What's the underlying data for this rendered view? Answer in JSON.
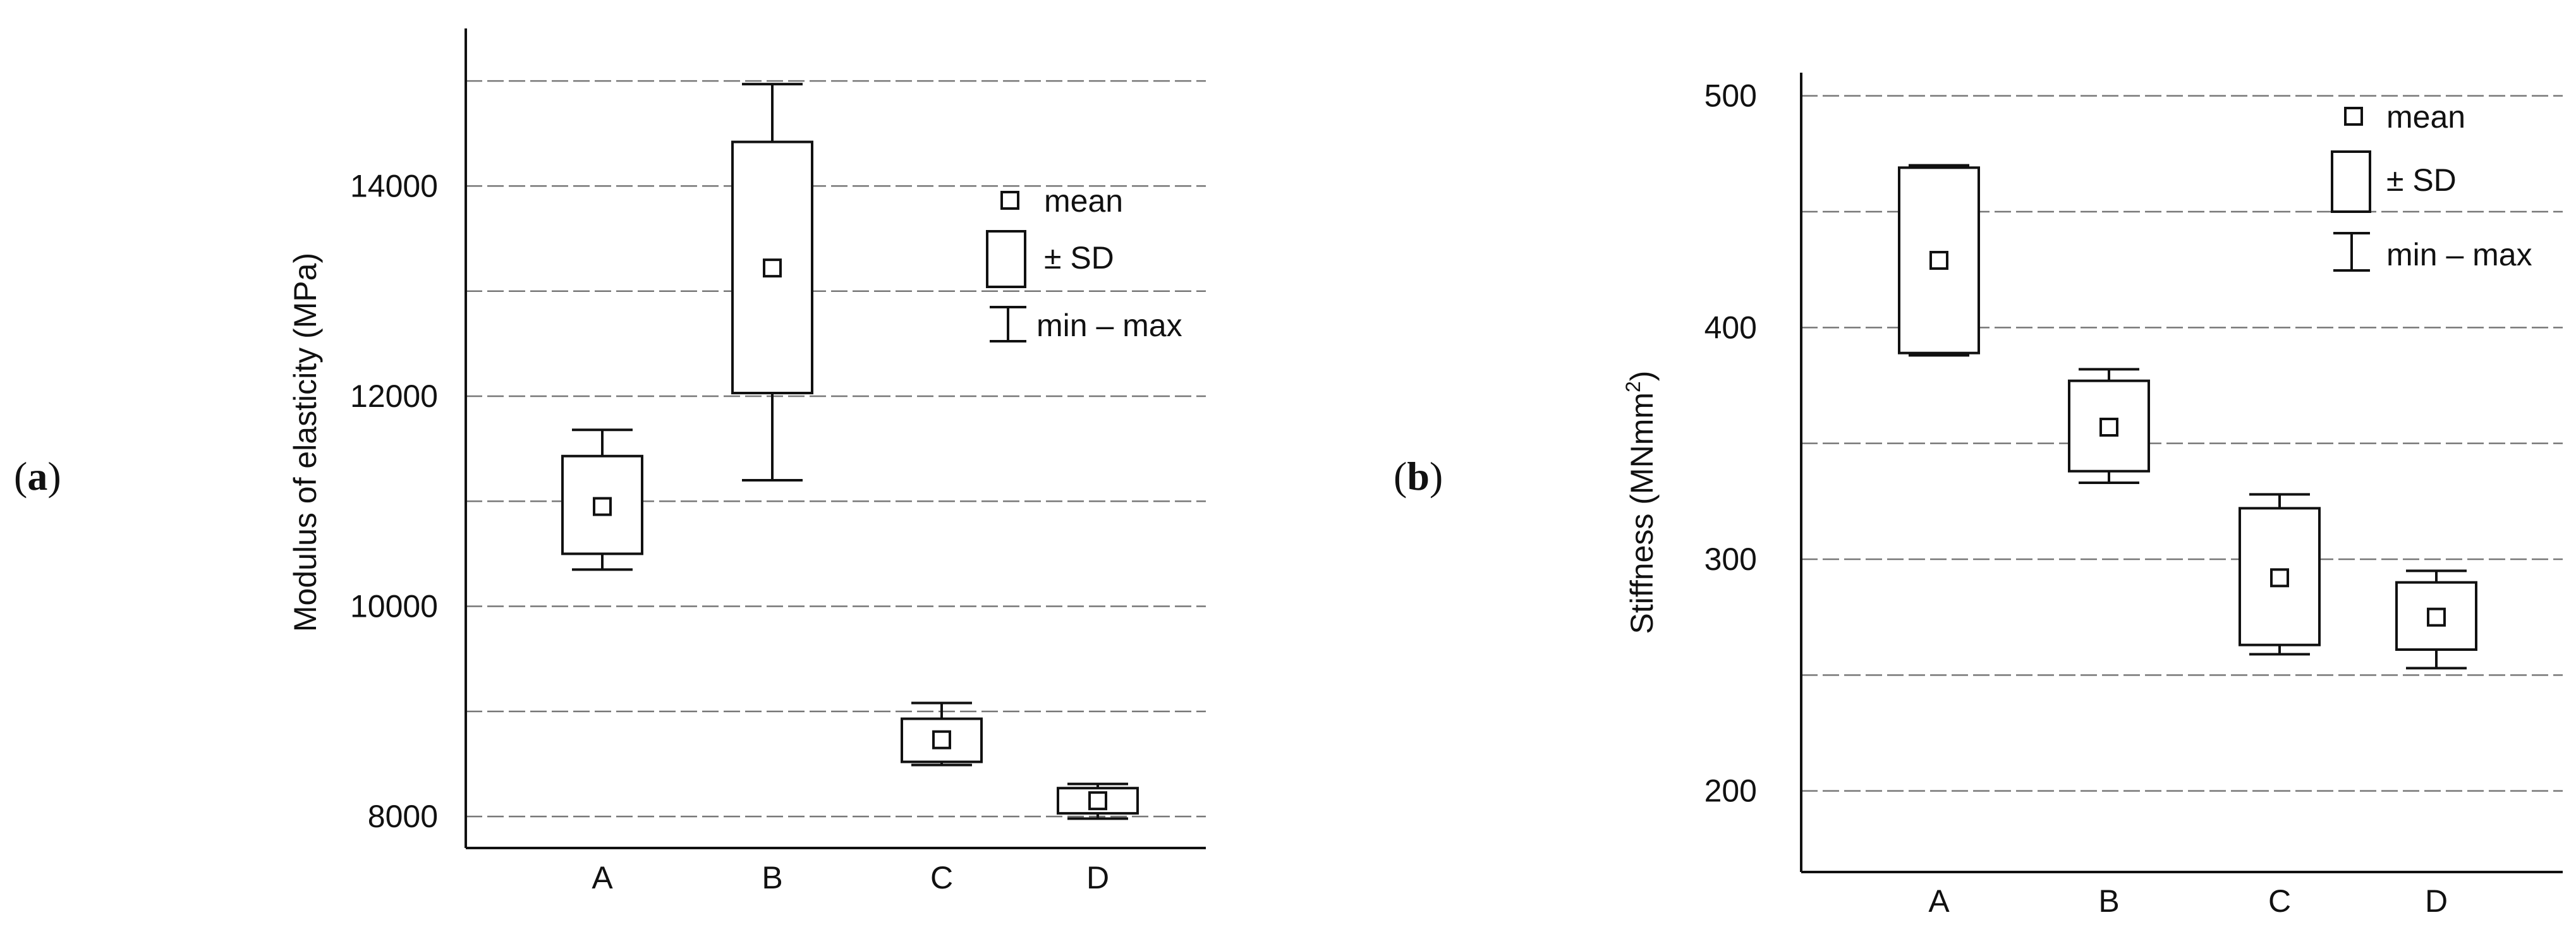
{
  "panels": [
    {
      "prefix": "(",
      "letter": "a",
      "suffix": ")"
    },
    {
      "prefix": "(",
      "letter": "b",
      "suffix": ")"
    }
  ],
  "legend": {
    "mean": "mean",
    "sd": "± SD",
    "minmax": "min – max"
  },
  "chart_data": [
    {
      "type": "box",
      "ylabel": "Modulus of elasticity (MPa)",
      "xlabel": "",
      "ylim": [
        7700,
        15500
      ],
      "yticks": [
        8000,
        10000,
        12000,
        14000
      ],
      "gridlines": [
        8000,
        9000,
        10000,
        11000,
        12000,
        13000,
        14000,
        15000
      ],
      "grid": "horizontal dashed",
      "legend_position": "top-right",
      "categories": [
        "A",
        "B",
        "C",
        "D"
      ],
      "mean": [
        10950,
        13220,
        8730,
        8150
      ],
      "sd_low": [
        10500,
        12030,
        8520,
        8030
      ],
      "sd_high": [
        11430,
        14420,
        8930,
        8270
      ],
      "min": [
        10350,
        11200,
        8490,
        7980
      ],
      "max": [
        11680,
        14970,
        9080,
        8310
      ]
    },
    {
      "type": "box",
      "ylabel": "Stiffness (MNmm",
      "ylabel_sup": "2",
      "ylabel_end": ")",
      "xlabel": "",
      "ylim": [
        165,
        510
      ],
      "yticks": [
        200,
        300,
        400,
        500
      ],
      "gridlines": [
        200,
        250,
        300,
        350,
        400,
        450,
        500
      ],
      "grid": "horizontal dashed",
      "legend_position": "top-right",
      "categories": [
        "A",
        "B",
        "C",
        "D"
      ],
      "mean": [
        429,
        357,
        292,
        275
      ],
      "sd_low": [
        389,
        338,
        263,
        261
      ],
      "sd_high": [
        469,
        377,
        322,
        290
      ],
      "min": [
        388,
        333,
        259,
        253
      ],
      "max": [
        470,
        382,
        328,
        295
      ]
    }
  ]
}
